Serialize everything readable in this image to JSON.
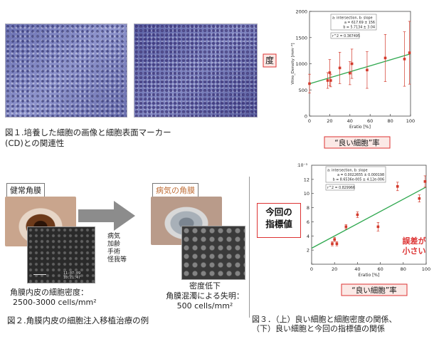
{
  "fig1": {
    "caption_line1": "図１.培養した細胞の画像と細胞表面マーカー",
    "caption_line2": "(CD)との関連性"
  },
  "fig2": {
    "healthy_label": "健常角膜",
    "diseased_label": "病気の角膜",
    "causes": [
      "病気",
      "加齢",
      "手術",
      "怪我等"
    ],
    "healthy_note_line1": "角膜内皮の細胞密度：",
    "healthy_note_line2": "2500-3000 cells/mm²",
    "diseased_note_line1": "密度低下",
    "diseased_note_line2": "角膜混濁による失明：",
    "diseased_note_line3": "500 cells/mm²",
    "caption": "図２.角膜内皮の細胞注入移植治療の例",
    "endo_stamp": "11-07-09 10:21:47"
  },
  "center_box": {
    "line1": "今回の",
    "line2": "指標値"
  },
  "fig3": {
    "caption_line1": "図３．（上）良い細胞と細胞密度の関係、",
    "caption_line2": "（下）良い細胞と今回の指標値の関係"
  },
  "colors": {
    "red": "#d33a2c",
    "green": "#2fa84f",
    "box_red": "#dd3333",
    "label_bg": "#fbe9e6"
  },
  "chart_data": [
    {
      "type": "scatter",
      "ylabel": "Vitro_Density [mm⁻²]",
      "xlabel": "Eratio [%]",
      "ylim": [
        0,
        2000
      ],
      "xlim": [
        0,
        100
      ],
      "yticks": [
        0,
        500,
        1000,
        1500,
        2000
      ],
      "xticks": [
        0,
        20,
        40,
        60,
        80,
        100
      ],
      "grid": false,
      "fit_box": {
        "line1": "a: intersection, b: slope",
        "line2": "a = 617.69 ± 156",
        "line3": "b = 5.7134 ± 3.04"
      },
      "r2_text": "r^2 = 0.367495",
      "fit": {
        "intercept": 617.69,
        "slope": 5.7134
      },
      "points": [
        {
          "x": 0,
          "y": 620,
          "err": 180
        },
        {
          "x": 18,
          "y": 680,
          "err": 150
        },
        {
          "x": 20,
          "y": 830,
          "err": 250
        },
        {
          "x": 21,
          "y": 680,
          "err": 120
        },
        {
          "x": 30,
          "y": 920,
          "err": 300
        },
        {
          "x": 40,
          "y": 820,
          "err": 220
        },
        {
          "x": 42,
          "y": 1000,
          "err": 280
        },
        {
          "x": 57,
          "y": 880,
          "err": 350
        },
        {
          "x": 75,
          "y": 1110,
          "err": 450
        },
        {
          "x": 94,
          "y": 1090,
          "err": 520
        },
        {
          "x": 99,
          "y": 1210,
          "err": 600
        }
      ],
      "side_label": "度",
      "bottom_label": "“良い細胞”率"
    },
    {
      "type": "scatter",
      "ylabel": "",
      "xlabel": "Eratio [%]",
      "exponent_label": "14x10⁻³",
      "ylim": [
        0,
        14
      ],
      "xlim": [
        0,
        100
      ],
      "yticks": [
        0,
        2,
        4,
        6,
        8,
        10,
        12
      ],
      "ytick_labels": [
        "",
        "2",
        "4",
        "6",
        "8",
        "10",
        "12"
      ],
      "xticks": [
        0,
        20,
        40,
        60,
        80,
        100
      ],
      "grid": false,
      "fit_box": {
        "line1": "a: intersection, b: slope",
        "line2": "a = 0.0022655 ± 0.000198",
        "line3": "b = 8.6536e-005 ± 4.12e-006"
      },
      "r2_text": "r^2 = 0.829966",
      "fit": {
        "intercept": 2.2655,
        "slope": 0.086536
      },
      "points": [
        {
          "x": 18,
          "y": 2.9,
          "err": 0.3
        },
        {
          "x": 20,
          "y": 3.5,
          "err": 0.3
        },
        {
          "x": 22,
          "y": 2.9,
          "err": 0.3
        },
        {
          "x": 30,
          "y": 5.3,
          "err": 0.3
        },
        {
          "x": 40,
          "y": 7.0,
          "err": 0.4
        },
        {
          "x": 58,
          "y": 5.3,
          "err": 0.6
        },
        {
          "x": 75,
          "y": 11.0,
          "err": 0.6
        },
        {
          "x": 94,
          "y": 9.3,
          "err": 0.5
        },
        {
          "x": 99,
          "y": 11.7,
          "err": 0.8
        }
      ],
      "annotation_line1": "誤差が",
      "annotation_line2": "小さい",
      "bottom_label": "“良い細胞”率"
    }
  ]
}
